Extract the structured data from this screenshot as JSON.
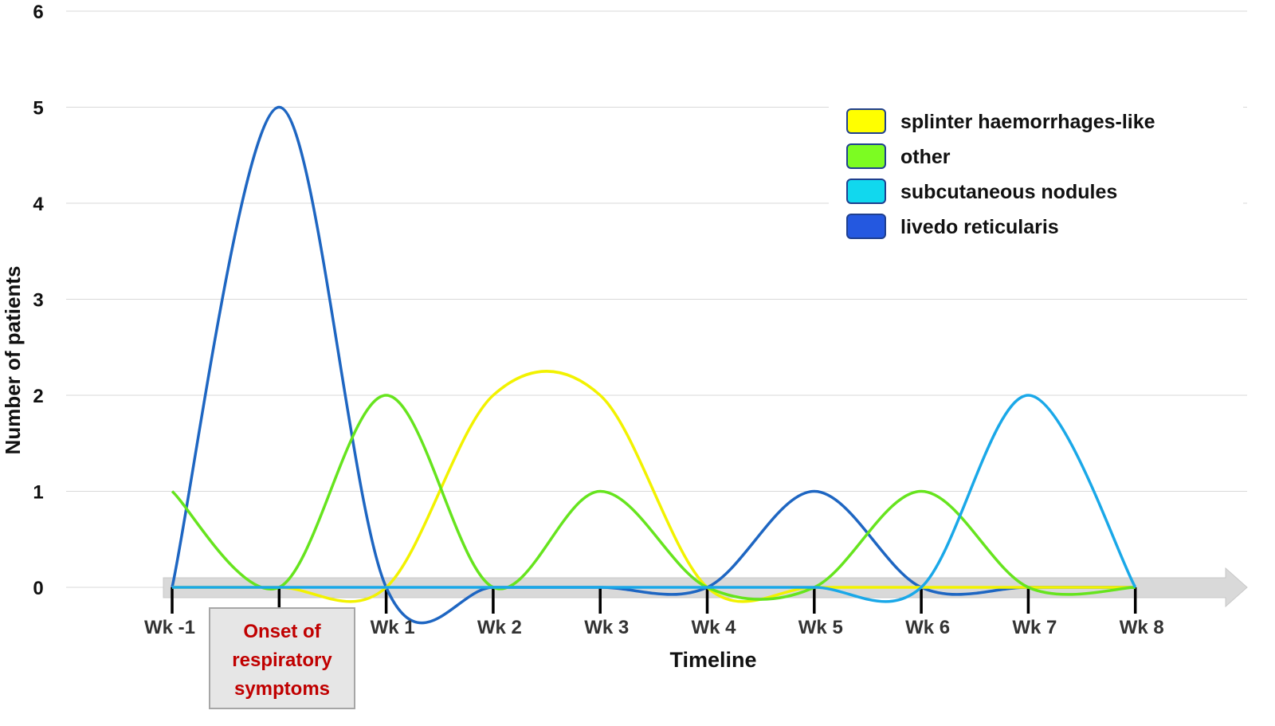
{
  "chart_data": {
    "type": "line",
    "smoothed": true,
    "title": "",
    "xlabel": "Timeline",
    "ylabel": "Number of patients",
    "ylim": [
      0,
      6
    ],
    "yticks": [
      0,
      1,
      2,
      3,
      4,
      5,
      6
    ],
    "grid": true,
    "legend_position": "top-right",
    "categories": [
      "Wk -1",
      "Onset",
      "Wk 1",
      "Wk 2",
      "Wk 3",
      "Wk 4",
      "Wk 5",
      "Wk 6",
      "Wk 7",
      "Wk 8"
    ],
    "tick_labels": [
      "Wk -1",
      "",
      "Wk 1",
      "Wk 2",
      "Wk 3",
      "Wk 4",
      "Wk 5",
      "Wk 6",
      "Wk 7",
      "Wk 8"
    ],
    "annotation": {
      "category": "Onset",
      "lines": [
        "Onset of",
        "respiratory",
        "symptoms"
      ],
      "color": "#c00000"
    },
    "series": [
      {
        "name": "livedo reticularis",
        "color": "#1e66c2",
        "swatch": "#2458e0",
        "values": [
          0,
          5,
          0,
          0,
          0,
          0,
          1,
          0,
          0,
          0
        ]
      },
      {
        "name": "splinter haemorrhages-like",
        "color": "#f2f200",
        "swatch": "#ffff00",
        "values": [
          0,
          0,
          0,
          2,
          2,
          0,
          0,
          0,
          0,
          0
        ]
      },
      {
        "name": "other",
        "color": "#66e41e",
        "swatch": "#7cfc22",
        "values": [
          1,
          0,
          2,
          0,
          1,
          0,
          0,
          1,
          0,
          0
        ]
      },
      {
        "name": "subcutaneous nodules",
        "color": "#1aa8e8",
        "swatch": "#11d8ee",
        "values": [
          0,
          0,
          0,
          0,
          0,
          0,
          0,
          0,
          2,
          0
        ]
      }
    ],
    "legend_order": [
      "splinter haemorrhages-like",
      "other",
      "subcutaneous nodules",
      "livedo reticularis"
    ]
  }
}
